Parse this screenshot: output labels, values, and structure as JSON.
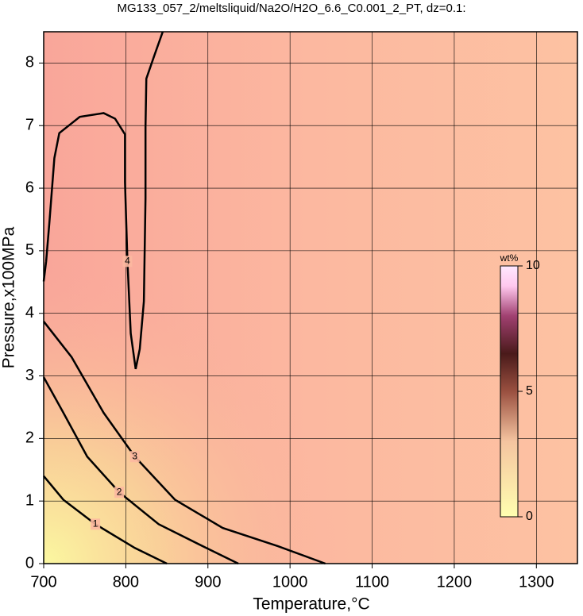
{
  "chart_data": {
    "type": "contour",
    "title": "MG133_057_2/meltsliquid/Na2O/H2O_6.6_C0.001_2_PT, dz=0.1:",
    "xlabel": "Temperature,°C",
    "ylabel": "Pressure,x100MPa",
    "xlim": [
      700,
      1350
    ],
    "ylim": [
      0,
      8.5
    ],
    "xticks": [
      700,
      800,
      900,
      1000,
      1100,
      1200,
      1300
    ],
    "yticks": [
      0,
      1,
      2,
      3,
      4,
      5,
      6,
      7,
      8
    ],
    "grid": true,
    "contours": [
      {
        "level": 4,
        "x": [
          845,
          835,
          825,
          824,
          824,
          822,
          817,
          812,
          806,
          802,
          799,
          799,
          787,
          773,
          744,
          719,
          713,
          707,
          703,
          700
        ],
        "y": [
          8.5,
          8.13,
          7.75,
          6.98,
          5.84,
          4.19,
          3.43,
          3.11,
          3.68,
          4.83,
          6.1,
          6.86,
          7.11,
          7.2,
          7.14,
          6.88,
          6.48,
          5.46,
          4.83,
          4.51
        ]
      },
      {
        "level": 3,
        "x": [
          700,
          734,
          773,
          811,
          860,
          918,
          985,
          1043
        ],
        "y": [
          3.87,
          3.3,
          2.41,
          1.71,
          1.02,
          0.57,
          0.28,
          0
        ]
      },
      {
        "level": 2,
        "x": [
          700,
          724,
          753,
          792,
          840,
          898,
          937
        ],
        "y": [
          2.98,
          2.41,
          1.71,
          1.14,
          0.63,
          0.25,
          0
        ]
      },
      {
        "level": 1,
        "x": [
          700,
          724,
          763,
          811,
          850
        ],
        "y": [
          1.4,
          1.02,
          0.63,
          0.25,
          0
        ]
      }
    ],
    "colorbar": {
      "label": "wt%",
      "zlim": [
        0,
        10
      ],
      "zticks": [
        0,
        5,
        10
      ]
    }
  }
}
